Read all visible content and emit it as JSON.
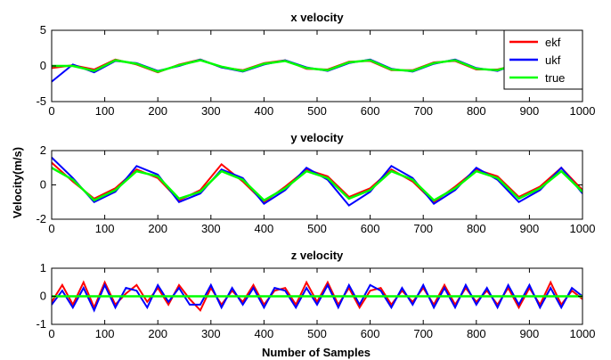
{
  "figure": {
    "ylabel": "Velocity(m/s)",
    "xlabel": "Number of Samples"
  },
  "legend": {
    "placement": "top-right",
    "entries": [
      {
        "label": "ekf",
        "color": "#ff0000"
      },
      {
        "label": "ukf",
        "color": "#0000ff"
      },
      {
        "label": "true",
        "color": "#00ff00"
      }
    ]
  },
  "chart_data": [
    {
      "type": "line",
      "title": "x velocity",
      "xlim": [
        0,
        1000
      ],
      "ylim": [
        -5,
        5
      ],
      "xticks": [
        0,
        100,
        200,
        300,
        400,
        500,
        600,
        700,
        800,
        900,
        1000
      ],
      "yticks": [
        -5,
        0,
        5
      ],
      "grid": false,
      "series": [
        {
          "name": "true",
          "color": "#00ff00",
          "x": [
            0,
            40,
            80,
            120,
            160,
            200,
            240,
            280,
            320,
            360,
            400,
            440,
            480,
            520,
            560,
            600,
            640,
            680,
            720,
            760,
            800,
            840,
            880,
            920,
            960,
            1000
          ],
          "y": [
            0,
            0,
            -0.7,
            0.8,
            0.3,
            -0.8,
            0.1,
            0.8,
            -0.1,
            -0.7,
            0.3,
            0.7,
            -0.3,
            -0.6,
            0.5,
            0.8,
            -0.5,
            -0.7,
            0.4,
            0.8,
            -0.4,
            -0.6,
            0.3,
            0.7,
            -0.3,
            0.3
          ]
        },
        {
          "name": "ekf",
          "color": "#ff0000",
          "x": [
            0,
            40,
            80,
            120,
            160,
            200,
            240,
            280,
            320,
            360,
            400,
            440,
            480,
            520,
            560,
            600,
            640,
            680,
            720,
            760,
            800,
            840,
            880,
            920,
            960,
            1000
          ],
          "y": [
            -0.3,
            0.1,
            -0.5,
            0.9,
            0.2,
            -0.9,
            0.2,
            0.9,
            -0.2,
            -0.6,
            0.4,
            0.8,
            -0.4,
            -0.5,
            0.6,
            0.7,
            -0.6,
            -0.6,
            0.5,
            0.7,
            -0.5,
            -0.5,
            0.2,
            0.6,
            -0.4,
            0.4
          ]
        },
        {
          "name": "ukf",
          "color": "#0000ff",
          "x": [
            0,
            40,
            80,
            120,
            160,
            200,
            240,
            280,
            320,
            360,
            400,
            440,
            480,
            520,
            560,
            600,
            640,
            680,
            720,
            760,
            800,
            840,
            880,
            920,
            960,
            1000
          ],
          "y": [
            -2.2,
            0.2,
            -0.9,
            0.7,
            0.4,
            -0.7,
            0,
            0.9,
            -0.2,
            -0.8,
            0.2,
            0.8,
            -0.2,
            -0.7,
            0.4,
            0.9,
            -0.4,
            -0.8,
            0.3,
            0.9,
            -0.3,
            -0.7,
            0.4,
            0.8,
            -0.2,
            0.2
          ]
        }
      ]
    },
    {
      "type": "line",
      "title": "y velocity",
      "xlim": [
        0,
        1000
      ],
      "ylim": [
        -2,
        2
      ],
      "xticks": [
        0,
        100,
        200,
        300,
        400,
        500,
        600,
        700,
        800,
        900,
        1000
      ],
      "yticks": [
        -2,
        0,
        2
      ],
      "grid": false,
      "series": [
        {
          "name": "true",
          "color": "#00ff00",
          "x": [
            0,
            40,
            80,
            120,
            160,
            200,
            240,
            280,
            320,
            360,
            400,
            440,
            480,
            520,
            560,
            600,
            640,
            680,
            720,
            760,
            800,
            840,
            880,
            920,
            960,
            1000
          ],
          "y": [
            1.0,
            0.3,
            -0.9,
            -0.3,
            0.8,
            0.5,
            -0.8,
            -0.4,
            0.8,
            0.3,
            -0.9,
            -0.2,
            0.8,
            0.4,
            -0.8,
            -0.3,
            0.8,
            0.3,
            -0.9,
            -0.2,
            0.8,
            0.4,
            -0.8,
            -0.2,
            0.8,
            -0.4
          ]
        },
        {
          "name": "ekf",
          "color": "#ff0000",
          "x": [
            0,
            40,
            80,
            120,
            160,
            200,
            240,
            280,
            320,
            360,
            400,
            440,
            480,
            520,
            560,
            600,
            640,
            680,
            720,
            760,
            800,
            840,
            880,
            920,
            960,
            1000
          ],
          "y": [
            1.3,
            0.2,
            -0.8,
            -0.2,
            0.9,
            0.4,
            -0.9,
            -0.3,
            1.2,
            0.2,
            -1.0,
            -0.1,
            0.9,
            0.5,
            -0.7,
            -0.2,
            0.9,
            0.2,
            -1.0,
            -0.1,
            0.9,
            0.5,
            -0.7,
            -0.1,
            1.0,
            -0.3
          ]
        },
        {
          "name": "ukf",
          "color": "#0000ff",
          "x": [
            0,
            40,
            80,
            120,
            160,
            200,
            240,
            280,
            320,
            360,
            400,
            440,
            480,
            520,
            560,
            600,
            640,
            680,
            720,
            760,
            800,
            840,
            880,
            920,
            960,
            1000
          ],
          "y": [
            1.6,
            0.4,
            -1.0,
            -0.4,
            1.1,
            0.6,
            -1.0,
            -0.5,
            0.9,
            0.4,
            -1.1,
            -0.3,
            1.0,
            0.3,
            -1.2,
            -0.4,
            1.1,
            0.4,
            -1.1,
            -0.3,
            1.0,
            0.3,
            -1.0,
            -0.3,
            1.0,
            -0.5
          ]
        }
      ]
    },
    {
      "type": "line",
      "title": "z velocity",
      "xlim": [
        0,
        1000
      ],
      "ylim": [
        -1,
        1
      ],
      "xticks": [
        0,
        100,
        200,
        300,
        400,
        500,
        600,
        700,
        800,
        900,
        1000
      ],
      "yticks": [
        -1,
        0,
        1
      ],
      "grid": false,
      "series": [
        {
          "name": "true",
          "color": "#00ff00",
          "x": [
            0,
            1000
          ],
          "y": [
            0,
            0
          ]
        },
        {
          "name": "ekf",
          "color": "#ff0000",
          "x": [
            0,
            20,
            40,
            60,
            80,
            100,
            120,
            140,
            160,
            180,
            200,
            220,
            240,
            260,
            280,
            300,
            320,
            340,
            360,
            380,
            400,
            420,
            440,
            460,
            480,
            500,
            520,
            540,
            560,
            580,
            600,
            620,
            640,
            660,
            680,
            700,
            720,
            740,
            760,
            780,
            800,
            820,
            840,
            860,
            880,
            900,
            920,
            940,
            960,
            980,
            1000
          ],
          "y": [
            -0.2,
            0.4,
            -0.3,
            0.5,
            -0.4,
            0.5,
            -0.3,
            0.1,
            0.4,
            -0.2,
            0.3,
            -0.3,
            0.4,
            -0.1,
            -0.5,
            0.3,
            -0.3,
            0.2,
            -0.2,
            0.4,
            -0.3,
            0.2,
            0.3,
            -0.3,
            0.5,
            -0.2,
            0.5,
            -0.3,
            0.3,
            -0.4,
            0.2,
            0.3,
            -0.3,
            0.2,
            -0.2,
            0.3,
            -0.3,
            0.4,
            -0.3,
            0.3,
            -0.2,
            0.2,
            -0.3,
            0.3,
            -0.4,
            0.3,
            -0.3,
            0.5,
            -0.3,
            0.2,
            -0.1
          ]
        },
        {
          "name": "ukf",
          "color": "#0000ff",
          "x": [
            0,
            20,
            40,
            60,
            80,
            100,
            120,
            140,
            160,
            180,
            200,
            220,
            240,
            260,
            280,
            300,
            320,
            340,
            360,
            380,
            400,
            420,
            440,
            460,
            480,
            500,
            520,
            540,
            560,
            580,
            600,
            620,
            640,
            660,
            680,
            700,
            720,
            740,
            760,
            780,
            800,
            820,
            840,
            860,
            880,
            900,
            920,
            940,
            960,
            980,
            1000
          ],
          "y": [
            -0.3,
            0.2,
            -0.4,
            0.3,
            -0.5,
            0.4,
            -0.4,
            0.3,
            0.2,
            -0.4,
            0.4,
            -0.2,
            0.3,
            -0.3,
            -0.3,
            0.4,
            -0.4,
            0.3,
            -0.3,
            0.3,
            -0.4,
            0.3,
            0.2,
            -0.4,
            0.3,
            -0.3,
            0.4,
            -0.4,
            0.4,
            -0.3,
            0.4,
            0.2,
            -0.4,
            0.3,
            -0.3,
            0.4,
            -0.4,
            0.3,
            -0.4,
            0.4,
            -0.3,
            0.3,
            -0.4,
            0.4,
            -0.3,
            0.4,
            -0.4,
            0.3,
            -0.4,
            0.3,
            0
          ]
        }
      ]
    }
  ]
}
